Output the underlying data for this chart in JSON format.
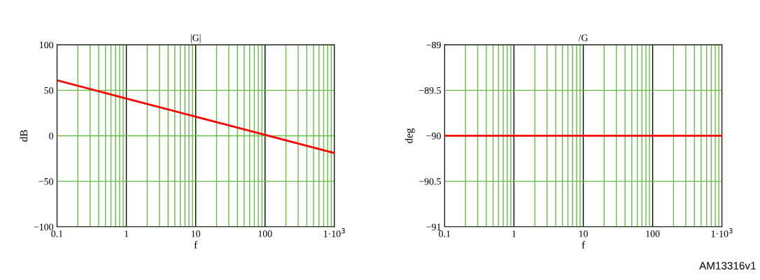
{
  "chart_data": [
    {
      "type": "line",
      "title": "|G|",
      "xlabel": "f",
      "ylabel": "dB",
      "log": "x",
      "grid": true,
      "xlim": [
        0.1,
        1000
      ],
      "ylim": [
        -100,
        100
      ],
      "xticks": [
        0.1,
        1,
        10,
        100,
        {
          "value": 1000,
          "label": "1·10$^{3}$"
        }
      ],
      "yticks": [
        -100,
        -50,
        0,
        50,
        100
      ],
      "x": [
        0.1,
        1,
        10,
        100,
        1000
      ],
      "series": [
        {
          "color": "#ff0000",
          "values": [
            61,
            41,
            21,
            1,
            -19
          ]
        }
      ]
    },
    {
      "type": "line",
      "title": "/G",
      "xlabel": "f",
      "ylabel": "deg",
      "log": "x",
      "grid": true,
      "xlim": [
        0.1,
        1000
      ],
      "ylim": [
        -91,
        -89
      ],
      "xticks": [
        0.1,
        1,
        10,
        100,
        {
          "value": 1000,
          "label": "1·10$^{3}$"
        }
      ],
      "yticks": [
        -91,
        -90.5,
        -90,
        -89.5,
        -89
      ],
      "x": [
        0.1,
        1000
      ],
      "series": [
        {
          "color": "#ff0000",
          "values": [
            -90,
            -90
          ]
        }
      ],
      "annotations": [
        "AM13316v1"
      ]
    }
  ]
}
